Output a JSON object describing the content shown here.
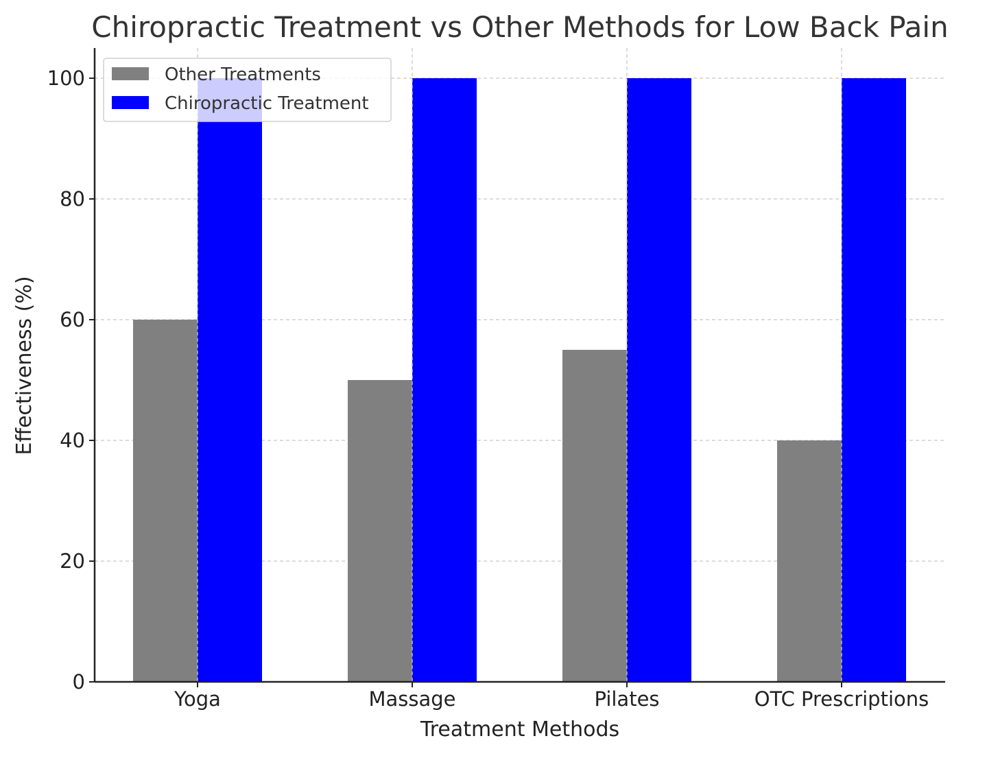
{
  "chart_data": {
    "type": "bar",
    "title": "Chiropractic Treatment vs Other Methods for Low Back Pain",
    "xlabel": "Treatment Methods",
    "ylabel": "Effectiveness (%)",
    "categories": [
      "Yoga",
      "Massage",
      "Pilates",
      "OTC Prescriptions"
    ],
    "series": [
      {
        "name": "Other Treatments",
        "color": "#808080",
        "values": [
          60,
          50,
          55,
          40
        ]
      },
      {
        "name": "Chiropractic Treatment",
        "color": "#0000ff",
        "values": [
          100,
          100,
          100,
          100
        ]
      }
    ],
    "ylim": [
      0,
      105
    ],
    "yticks": [
      0,
      20,
      40,
      60,
      80,
      100
    ],
    "grid": true,
    "legend_position": "top-left"
  }
}
